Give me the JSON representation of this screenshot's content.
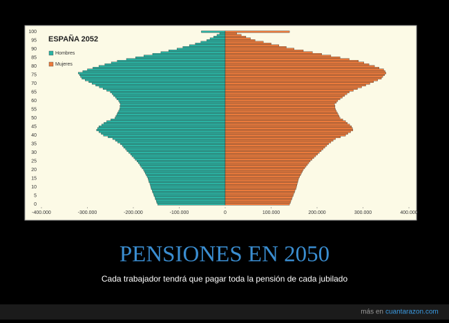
{
  "chart_data": {
    "type": "bar",
    "orientation": "horizontal",
    "title": "ESPAÑA 2052",
    "categories": [
      0,
      null,
      null,
      null,
      null,
      5,
      null,
      null,
      null,
      null,
      10,
      null,
      null,
      null,
      null,
      15,
      null,
      null,
      null,
      null,
      20,
      null,
      null,
      null,
      null,
      25,
      null,
      null,
      null,
      null,
      30,
      null,
      null,
      null,
      null,
      35,
      null,
      null,
      null,
      null,
      40,
      null,
      null,
      null,
      null,
      45,
      null,
      null,
      null,
      null,
      50,
      null,
      null,
      null,
      null,
      55,
      null,
      null,
      null,
      null,
      60,
      null,
      null,
      null,
      null,
      65,
      null,
      null,
      null,
      null,
      70,
      null,
      null,
      null,
      null,
      75,
      null,
      null,
      null,
      null,
      80,
      null,
      null,
      null,
      null,
      85,
      null,
      null,
      null,
      null,
      90,
      null,
      null,
      null,
      null,
      95,
      null,
      null,
      null,
      null,
      100
    ],
    "series": [
      {
        "name": "Hombres",
        "color": "#2bb3a3",
        "values": [
          -147000,
          -149000,
          -150000,
          -152000,
          -153000,
          -155000,
          -156000,
          -158000,
          -159000,
          -161000,
          -162000,
          -163000,
          -164000,
          -166000,
          -167000,
          -168000,
          -170000,
          -172000,
          -174000,
          -176000,
          -178000,
          -181000,
          -184000,
          -186000,
          -189000,
          -192000,
          -196000,
          -199000,
          -203000,
          -206000,
          -210000,
          -214000,
          -217000,
          -221000,
          -224000,
          -228000,
          -234000,
          -239000,
          -245000,
          -255000,
          -265000,
          -270000,
          -275000,
          -280000,
          -278000,
          -275000,
          -269000,
          -264000,
          -258000,
          -249000,
          -240000,
          -238000,
          -236000,
          -234000,
          -232000,
          -230000,
          -229000,
          -229000,
          -228000,
          -230000,
          -232000,
          -236000,
          -239000,
          -243000,
          -246000,
          -250000,
          -258000,
          -266000,
          -274000,
          -282000,
          -290000,
          -297000,
          -305000,
          -312000,
          -315000,
          -317000,
          -320000,
          -310000,
          -300000,
          -288000,
          -275000,
          -262000,
          -248000,
          -235000,
          -215000,
          -195000,
          -177000,
          -158000,
          -140000,
          -123000,
          -105000,
          -92000,
          -78000,
          -65000,
          -53000,
          -40000,
          -33000,
          -25000,
          -18000,
          -12000,
          -52000
        ]
      },
      {
        "name": "Mujeres",
        "color": "#ec7b3c",
        "values": [
          140000,
          142000,
          143000,
          145000,
          146000,
          148000,
          149000,
          151000,
          152000,
          154000,
          155000,
          156000,
          157000,
          158000,
          159000,
          160000,
          162000,
          164000,
          166000,
          168000,
          170000,
          173000,
          176000,
          179000,
          182000,
          185000,
          189000,
          193000,
          197000,
          201000,
          205000,
          209000,
          213000,
          217000,
          221000,
          225000,
          230000,
          235000,
          240000,
          251000,
          262000,
          267000,
          273000,
          278000,
          277000,
          275000,
          271000,
          266000,
          262000,
          256000,
          250000,
          248000,
          246000,
          244000,
          242000,
          240000,
          239000,
          239000,
          238000,
          242000,
          245000,
          250000,
          255000,
          260000,
          265000,
          270000,
          279000,
          288000,
          297000,
          306000,
          315000,
          323000,
          332000,
          340000,
          343000,
          347000,
          350000,
          348000,
          345000,
          335000,
          325000,
          313000,
          302000,
          290000,
          270000,
          250000,
          230000,
          210000,
          190000,
          170000,
          150000,
          133000,
          117000,
          100000,
          83000,
          65000,
          55000,
          45000,
          35000,
          25000,
          140000
        ]
      }
    ],
    "xlim": [
      -400000,
      400000
    ],
    "xticks": [
      {
        "value": -400000,
        "label": "-400.000"
      },
      {
        "value": -300000,
        "label": "-300.000"
      },
      {
        "value": -200000,
        "label": "-200.000"
      },
      {
        "value": -100000,
        "label": "-100.000"
      },
      0,
      {
        "value": 100000,
        "label": "100.000"
      },
      {
        "value": 200000,
        "label": "200.000"
      },
      {
        "value": 300000,
        "label": "300.000"
      },
      {
        "value": 400000,
        "label": "400.000"
      }
    ],
    "legend": "top-left"
  },
  "poster": {
    "headline": "PENSIONES EN 2050",
    "caption": "Cada trabajador tendrá que pagar toda la pensión de cada jubilado"
  },
  "footer": {
    "prefix": "más en",
    "link": "cuantarazon.com"
  }
}
